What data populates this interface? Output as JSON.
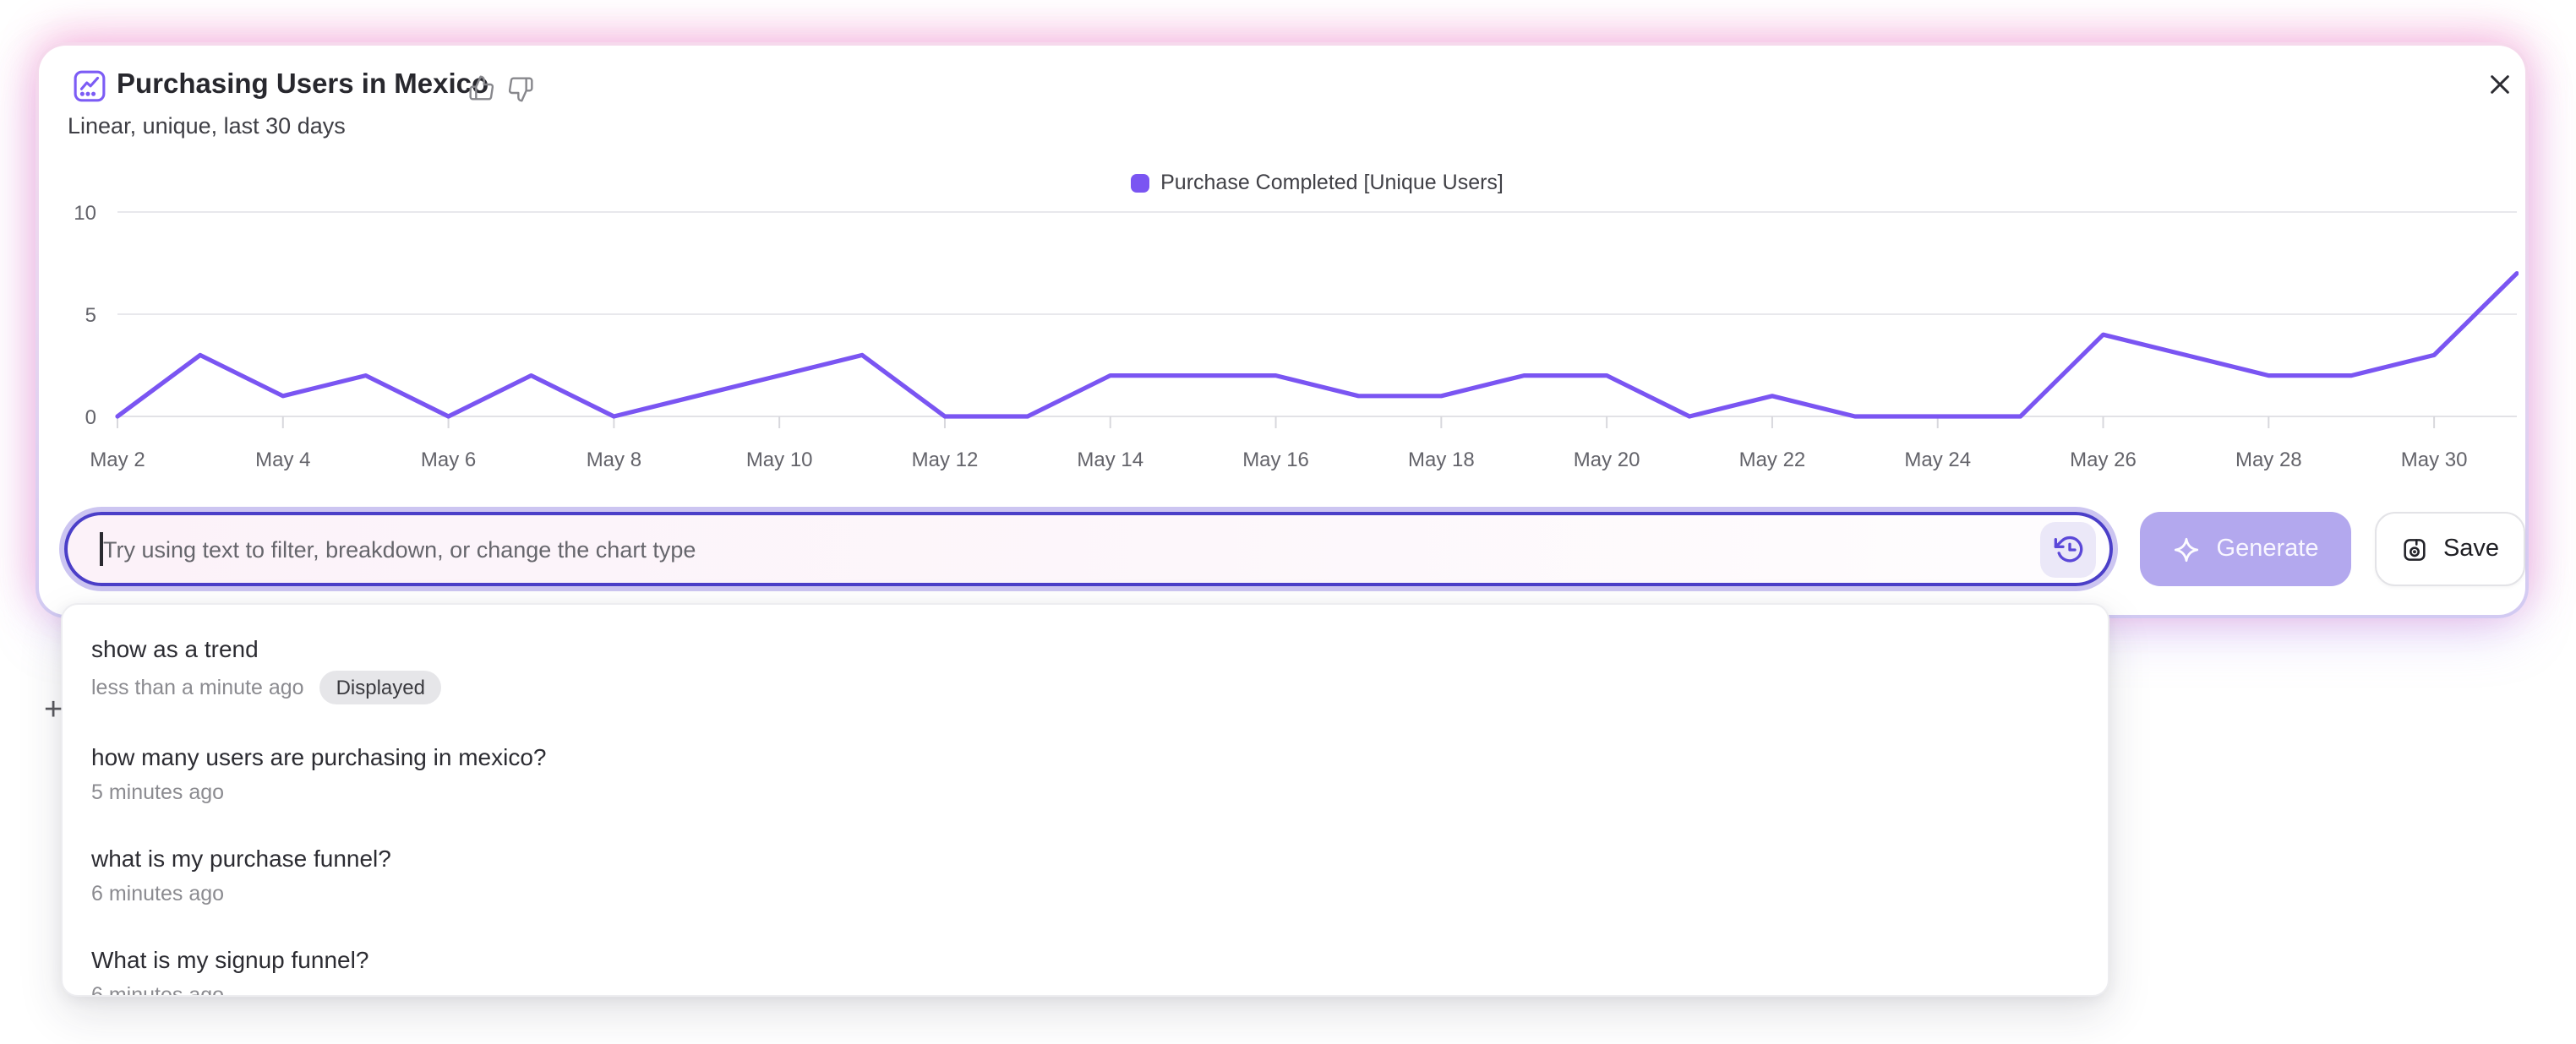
{
  "card": {
    "title": "Purchasing Users in Mexico",
    "subtitle": "Linear, unique, last 30 days"
  },
  "chart_data": {
    "type": "line",
    "title": "Purchasing Users in Mexico",
    "categories": [
      "May 2",
      "May 3",
      "May 4",
      "May 5",
      "May 6",
      "May 7",
      "May 8",
      "May 9",
      "May 10",
      "May 11",
      "May 12",
      "May 13",
      "May 14",
      "May 15",
      "May 16",
      "May 17",
      "May 18",
      "May 19",
      "May 20",
      "May 21",
      "May 22",
      "May 23",
      "May 24",
      "May 25",
      "May 26",
      "May 27",
      "May 28",
      "May 29",
      "May 30",
      "May 31"
    ],
    "series": [
      {
        "name": "Purchase Completed [Unique Users]",
        "values": [
          0,
          3,
          1,
          2,
          0,
          2,
          0,
          1,
          2,
          3,
          0,
          0,
          2,
          2,
          2,
          1,
          1,
          2,
          2,
          0,
          1,
          0,
          0,
          0,
          4,
          3,
          2,
          2,
          3,
          7
        ]
      }
    ],
    "xlabel": "",
    "ylabel": "",
    "ylim": [
      0,
      10
    ],
    "yticks": [
      0,
      5,
      10
    ],
    "x_tick_every": 2,
    "grid": "horizontal",
    "legend_position": "top-center",
    "line_color": "#7a55f2",
    "grid_color": "#e8e8ec",
    "tick_color": "#d8d8dd",
    "axis_label_color": "#63636a"
  },
  "prompt": {
    "placeholder": "Try using text to filter, breakdown, or change the chart type",
    "generate_label": "Generate",
    "save_label": "Save"
  },
  "history": {
    "plus_marker": "+",
    "items": [
      {
        "label": "show as a trend",
        "time": "less than a minute ago",
        "badge": "Displayed"
      },
      {
        "label": "how many users are purchasing in mexico?",
        "time": "5 minutes ago"
      },
      {
        "label": "what is my purchase funnel?",
        "time": "6 minutes ago"
      },
      {
        "label": "What is my signup funnel?",
        "time": "6 minutes ago"
      }
    ]
  },
  "colors": {
    "accent_purple": "#7a55f2",
    "input_border": "#4b3fc8",
    "input_ring": "#ccc5f1",
    "generate_bg": "#b3a8ee",
    "glow_pink": "#f1a7d4",
    "glow_lavender": "#b7a6f0"
  }
}
